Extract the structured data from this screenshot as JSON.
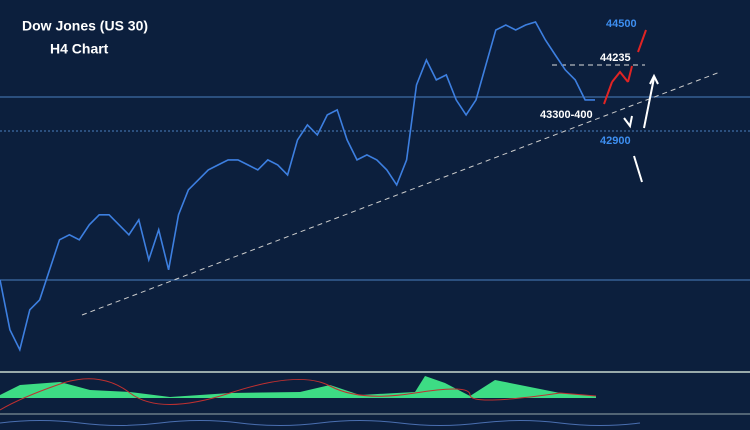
{
  "chart_data": {
    "type": "line",
    "title": "Dow Jones (US 30)",
    "subtitle": "H4 Chart",
    "annotations": [
      "44500",
      "44235",
      "43300-400",
      "42900"
    ],
    "ylim": [
      38070,
      45550
    ],
    "series": [
      {
        "color": "#3d7fe0",
        "values": [
          39894,
          38884,
          38480,
          39288,
          39490,
          40096,
          40702,
          40803,
          40702,
          41005,
          41207,
          41207,
          41005,
          40803,
          41106,
          40298,
          40904,
          40096,
          41207,
          41712,
          41914,
          42116,
          42217,
          42318,
          42318,
          42217,
          42116,
          42318,
          42217,
          42015,
          42722,
          43025,
          42823,
          43227,
          43328,
          42722,
          42318,
          42419,
          42318,
          42116,
          41813,
          42318,
          43833,
          44338,
          43934,
          44035,
          43530,
          43227,
          43530,
          44237,
          44944,
          45045,
          44944,
          45045,
          45106,
          44742,
          44439,
          44136,
          43934,
          43530,
          43530
        ]
      }
    ]
  }
}
